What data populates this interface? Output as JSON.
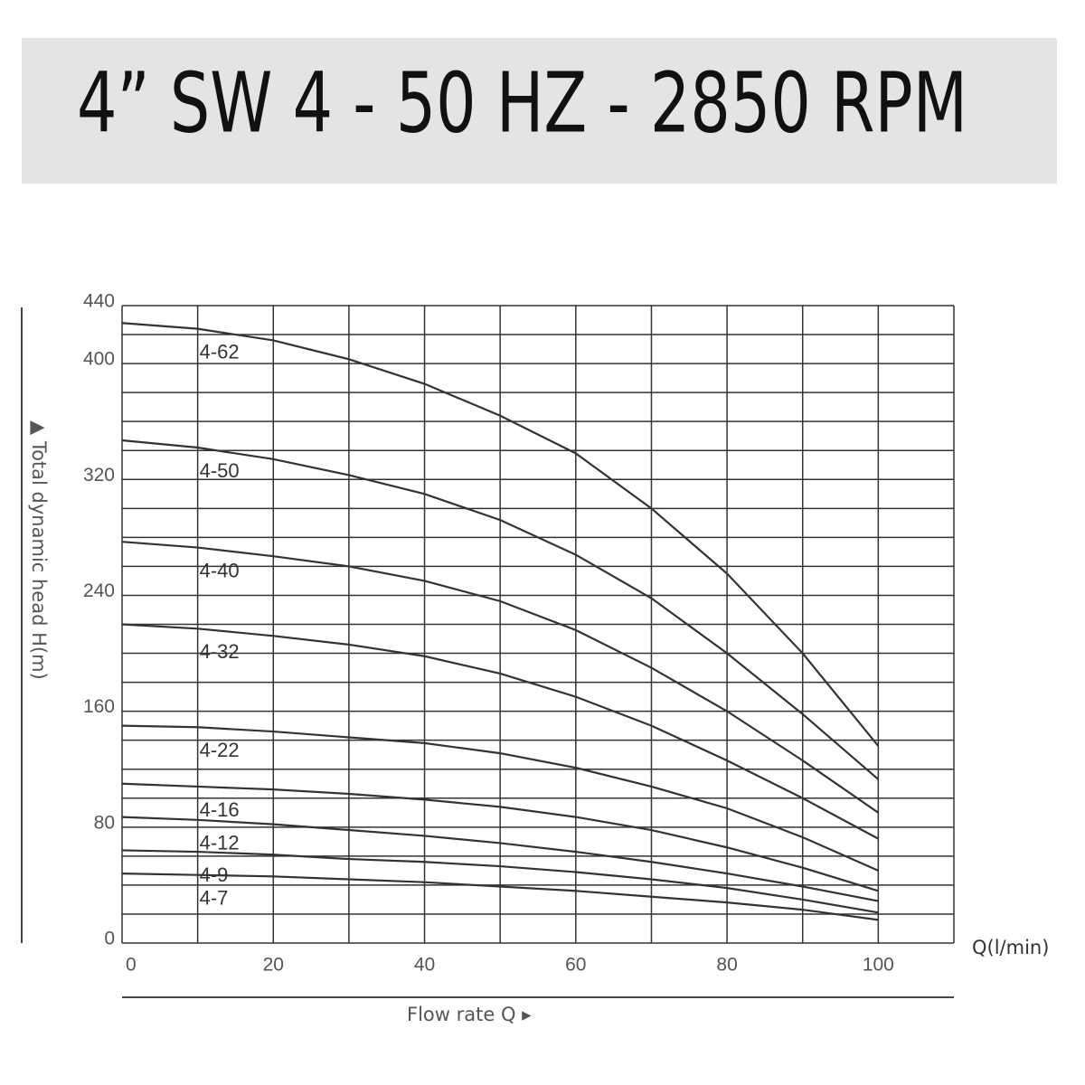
{
  "chart_data": {
    "type": "line",
    "title": "4” SW 4 - 50 HZ - 2850 RPM",
    "y_label": "▲ Total dynamic head H(m)",
    "x_label": "Flow rate Q ▸",
    "x_unit": "Q(l/min)",
    "x": [
      0,
      10,
      20,
      30,
      40,
      50,
      60,
      70,
      80,
      90,
      100
    ],
    "xlim": [
      0,
      110
    ],
    "ylim": [
      0,
      440
    ],
    "xticks": [
      0,
      20,
      40,
      60,
      80,
      100
    ],
    "yticks": [
      0,
      80,
      160,
      240,
      320,
      400,
      440
    ],
    "xgrid": [
      0,
      10,
      20,
      30,
      40,
      50,
      60,
      70,
      80,
      90,
      100,
      110
    ],
    "ygrid": [
      0,
      20,
      40,
      60,
      80,
      100,
      120,
      140,
      160,
      180,
      200,
      220,
      240,
      260,
      280,
      300,
      320,
      340,
      360,
      380,
      400,
      420,
      440
    ],
    "series": [
      {
        "name": "4-62",
        "color": "#333333",
        "values": [
          428,
          424,
          416,
          403,
          386,
          364,
          338,
          300,
          255,
          200,
          136
        ]
      },
      {
        "name": "4-50",
        "color": "#333333",
        "values": [
          347,
          342,
          334,
          323,
          310,
          292,
          268,
          238,
          200,
          158,
          113
        ]
      },
      {
        "name": "4-40",
        "color": "#333333",
        "values": [
          277,
          273,
          267,
          260,
          250,
          236,
          216,
          190,
          160,
          126,
          90
        ]
      },
      {
        "name": "4-32",
        "color": "#333333",
        "values": [
          220,
          217,
          212,
          206,
          198,
          186,
          170,
          150,
          126,
          100,
          72
        ]
      },
      {
        "name": "4-22",
        "color": "#333333",
        "values": [
          150,
          149,
          146,
          142,
          138,
          131,
          121,
          108,
          93,
          73,
          50
        ]
      },
      {
        "name": "4-16",
        "color": "#333333",
        "values": [
          110,
          108,
          106,
          103,
          99,
          94,
          87,
          78,
          66,
          52,
          36
        ]
      },
      {
        "name": "4-12",
        "color": "#333333",
        "values": [
          87,
          85,
          82,
          78,
          74,
          69,
          63,
          56,
          48,
          39,
          29
        ]
      },
      {
        "name": "4-9",
        "color": "#333333",
        "values": [
          64,
          63,
          61,
          58,
          56,
          53,
          49,
          44,
          38,
          30,
          21
        ]
      },
      {
        "name": "4-7",
        "color": "#333333",
        "values": [
          48,
          47,
          46,
          44,
          42,
          39,
          36,
          32,
          28,
          23,
          16
        ]
      }
    ]
  }
}
